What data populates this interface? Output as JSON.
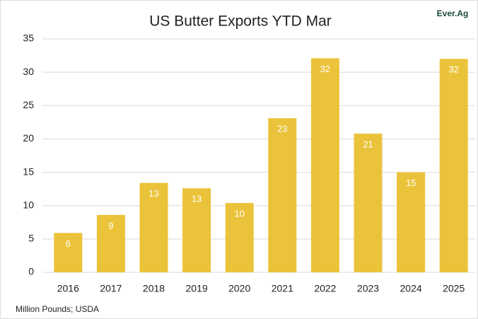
{
  "chart_data": {
    "type": "bar",
    "title": "US Butter Exports YTD Mar",
    "logo": "Ever.Ag",
    "note": "Million Pounds; USDA",
    "categories": [
      "2016",
      "2017",
      "2018",
      "2019",
      "2020",
      "2021",
      "2022",
      "2023",
      "2024",
      "2025"
    ],
    "values": [
      5.9,
      8.6,
      13.4,
      12.6,
      10.4,
      23.1,
      32.1,
      20.8,
      15.0,
      32.0
    ],
    "value_labels": [
      "6",
      "9",
      "13",
      "13",
      "10",
      "23",
      "32",
      "21",
      "15",
      "32"
    ],
    "color": "#EBC33A",
    "ylim": [
      0,
      35
    ],
    "yticks": [
      0,
      5,
      10,
      15,
      20,
      25,
      30,
      35
    ],
    "grid": true
  }
}
